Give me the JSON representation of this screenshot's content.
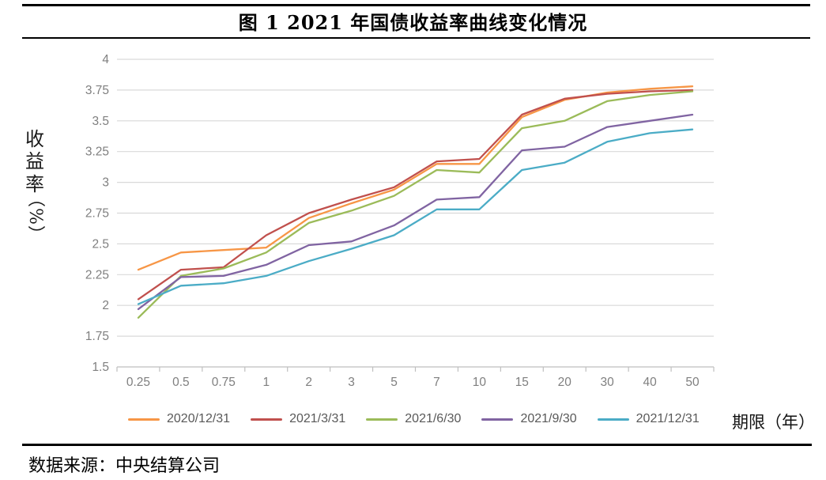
{
  "title": "图 1 2021 年国债收益率曲线变化情况",
  "source": "数据来源：中央结算公司",
  "chart_data": {
    "type": "line",
    "title": "图 1 2021 年国债收益率曲线变化情况",
    "xlabel": "期限（年）",
    "ylabel": "收益率（%）",
    "ylabel_main": "收益率",
    "ylabel_unit": "（%）",
    "categories": [
      "0.25",
      "0.5",
      "0.75",
      "1",
      "2",
      "3",
      "5",
      "7",
      "10",
      "15",
      "20",
      "30",
      "40",
      "50"
    ],
    "ylim": [
      1.5,
      4
    ],
    "ytick_step": 0.25,
    "grid": true,
    "legend_position": "bottom",
    "series": [
      {
        "name": "2020/12/31",
        "color": "#F79646",
        "values": [
          2.29,
          2.43,
          2.45,
          2.47,
          2.71,
          2.83,
          2.94,
          3.15,
          3.15,
          3.53,
          3.67,
          3.73,
          3.76,
          3.78
        ]
      },
      {
        "name": "2021/3/31",
        "color": "#C0504D",
        "values": [
          2.05,
          2.29,
          2.31,
          2.57,
          2.75,
          2.86,
          2.96,
          3.17,
          3.19,
          3.55,
          3.68,
          3.72,
          3.74,
          3.75
        ]
      },
      {
        "name": "2021/6/30",
        "color": "#9BBB59",
        "values": [
          1.9,
          2.24,
          2.3,
          2.43,
          2.67,
          2.77,
          2.89,
          3.1,
          3.08,
          3.44,
          3.5,
          3.66,
          3.71,
          3.74
        ]
      },
      {
        "name": "2021/9/30",
        "color": "#8064A2",
        "values": [
          1.97,
          2.23,
          2.24,
          2.33,
          2.49,
          2.52,
          2.65,
          2.86,
          2.88,
          3.26,
          3.29,
          3.45,
          3.5,
          3.55
        ]
      },
      {
        "name": "2021/12/31",
        "color": "#4BACC6",
        "values": [
          2.01,
          2.16,
          2.18,
          2.24,
          2.36,
          2.46,
          2.57,
          2.78,
          2.78,
          3.1,
          3.16,
          3.33,
          3.4,
          3.43
        ]
      }
    ]
  },
  "colors": {
    "gridline": "#D9D9D9",
    "axis_line": "#BFBFBF",
    "tick_text": "#7F7F7F",
    "legend_text": "#595959",
    "rule": "#000000"
  }
}
